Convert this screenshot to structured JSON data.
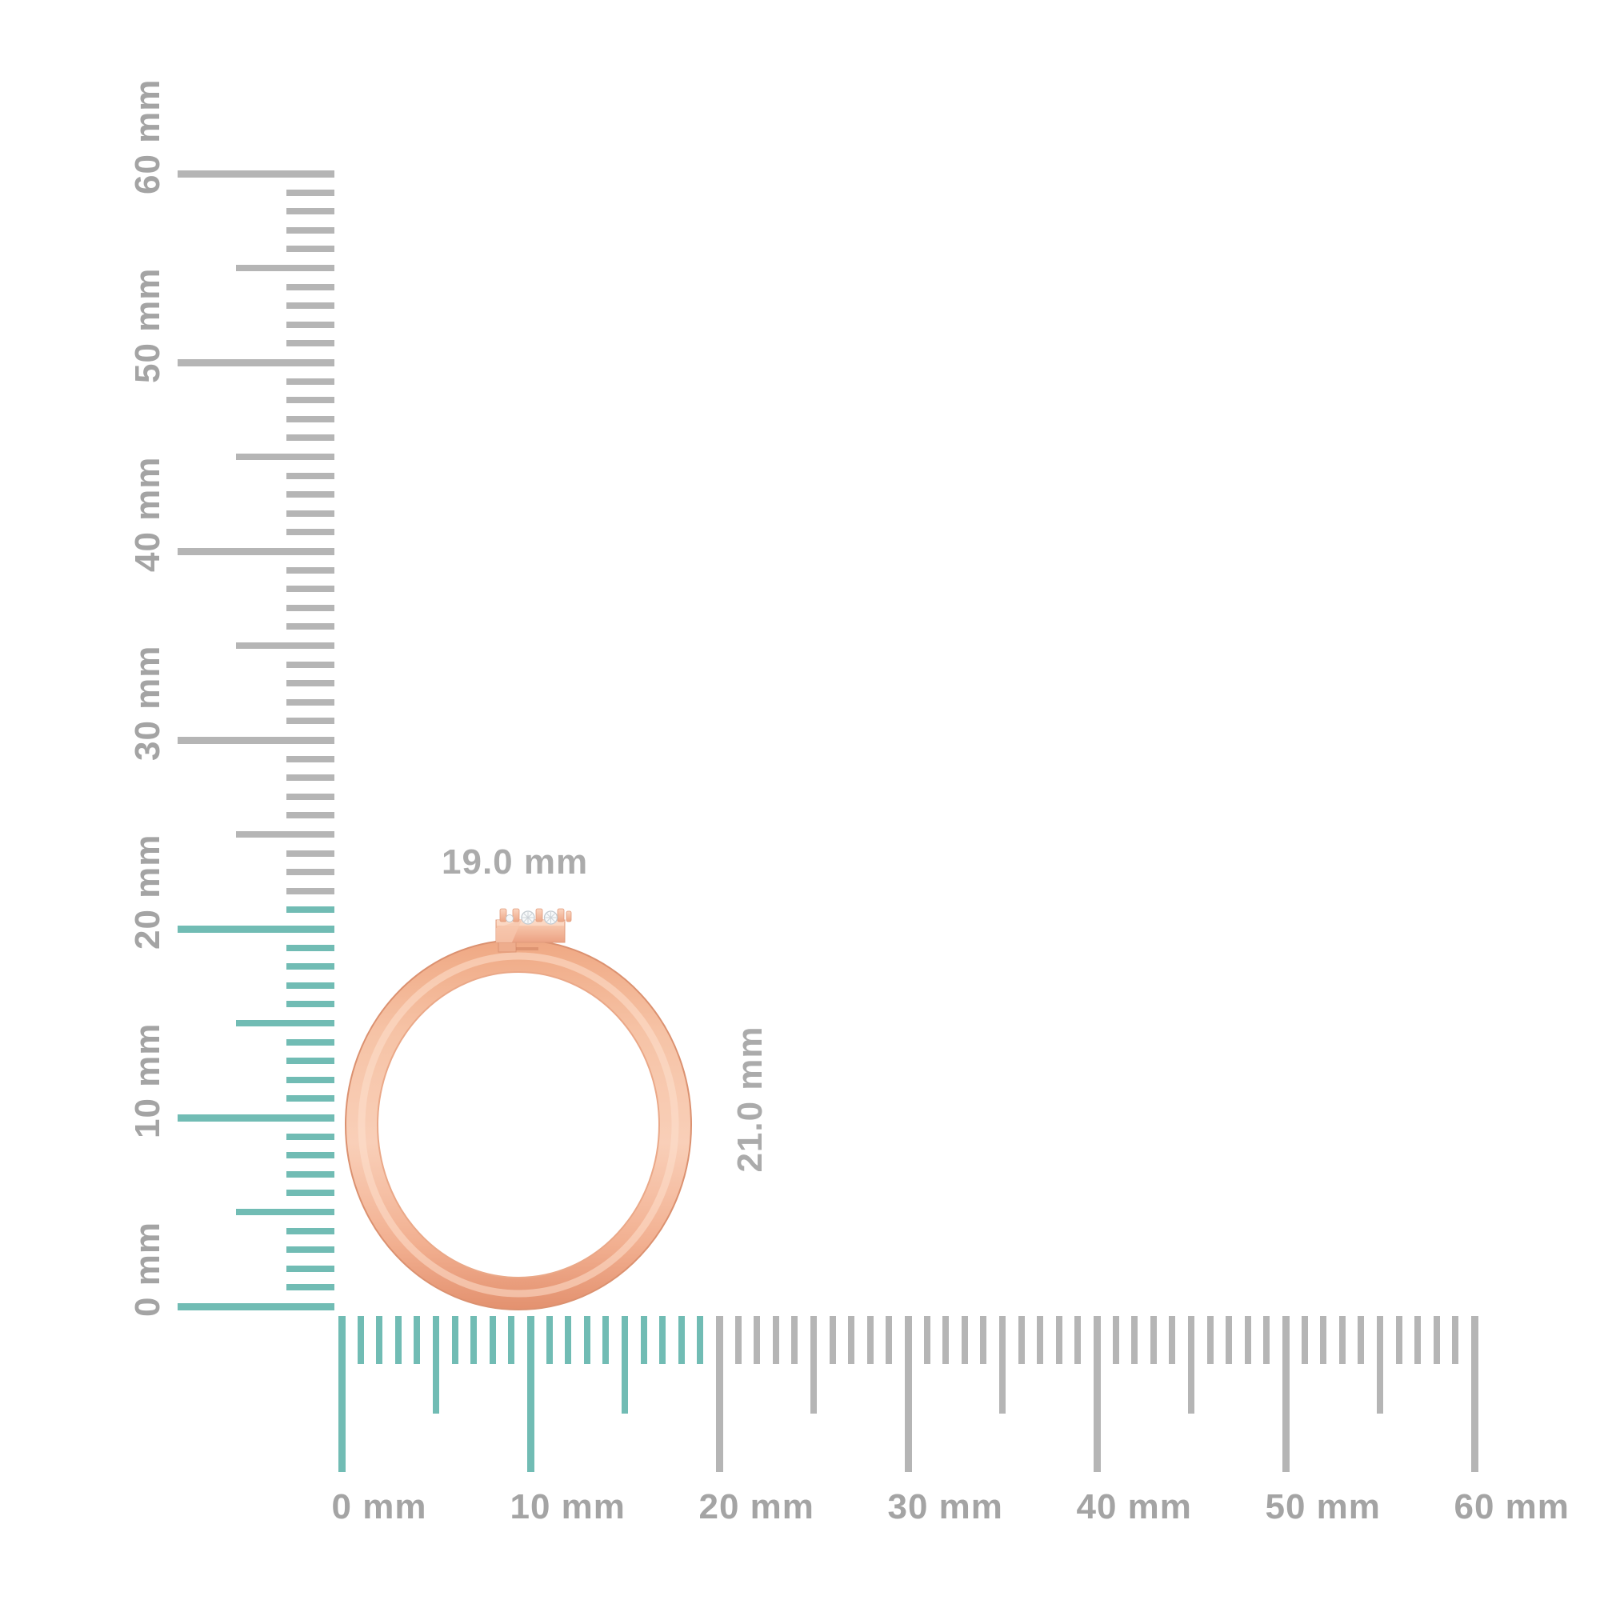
{
  "figure_title": "ring with rulers measurement image",
  "annotations": {
    "width": "19.0 mm",
    "height": "21.0 mm"
  },
  "colors": {
    "background": "#ffffff",
    "ruler_highlight_teal": "#71bcb4",
    "ruler_tick_gray": "#b5b5b5",
    "ruler_label_gray": "#a4a4a4",
    "annotation_gray": "#ababab",
    "rose_gold_light": "#f9cfb8",
    "rose_gold_mid": "#f3b294",
    "rose_gold_dark": "#e79c7b",
    "rose_gold_edge": "#db9170",
    "diamond_white": "#f7f9fa",
    "diamond_facet": "#c3cad0"
  },
  "rulers": {
    "unit": "mm",
    "vertical": {
      "min_mm": 0,
      "max_mm": 60,
      "label_every_mm": 10,
      "medium_tick_every_mm": 5,
      "highlight_max_mm": 21,
      "labels": [
        {
          "value": "0",
          "unit": "mm"
        },
        {
          "value": "10",
          "unit": "mm"
        },
        {
          "value": "20",
          "unit": "mm"
        },
        {
          "value": "30",
          "unit": "mm"
        },
        {
          "value": "40",
          "unit": "mm"
        },
        {
          "value": "50",
          "unit": "mm"
        },
        {
          "value": "60",
          "unit": "mm"
        }
      ]
    },
    "horizontal": {
      "min_mm": 0,
      "max_mm": 60,
      "label_every_mm": 10,
      "medium_tick_every_mm": 5,
      "highlight_max_mm": 19,
      "labels": [
        {
          "value": "0",
          "unit": "mm"
        },
        {
          "value": "10",
          "unit": "mm"
        },
        {
          "value": "20",
          "unit": "mm"
        },
        {
          "value": "30",
          "unit": "mm"
        },
        {
          "value": "40",
          "unit": "mm"
        },
        {
          "value": "50",
          "unit": "mm"
        },
        {
          "value": "60",
          "unit": "mm"
        }
      ]
    }
  }
}
